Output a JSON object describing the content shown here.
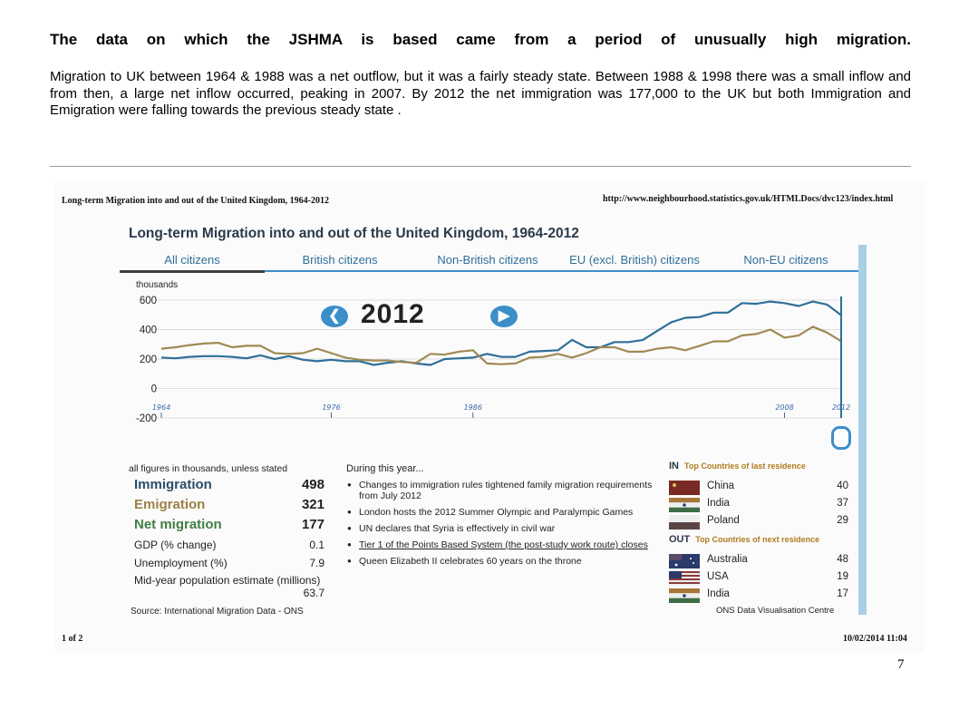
{
  "slide": {
    "heading": "The data on which the JSHMA is based came from a period of unusually high migration.",
    "intro": "Migration to UK between 1964 & 1988 was a net outflow, but it was a fairly steady state. Between 1988 & 1998 there was a small inflow and from then, a large net inflow occurred, peaking in 2007. By 2012 the net immigration was 177,000 to the UK but both Immigration and Emigration were falling towards the previous steady state .",
    "page_number": "7"
  },
  "printout": {
    "title": "Long-term Migration into and out of the United Kingdom, 1964-2012",
    "url": "http://www.neighbourhood.statistics.gov.uk/HTMLDocs/dvc123/index.html",
    "page": "1 of 2",
    "timestamp": "10/02/2014 11:04"
  },
  "visualisation": {
    "title": "Long-term Migration into and out of the United Kingdom, 1964-2012",
    "tabs": [
      "All citizens",
      "British citizens",
      "Non-British citizens",
      "EU (excl. British) citizens",
      "Non-EU citizens"
    ],
    "active_tab": "All citizens",
    "year": "2012",
    "prev_icon": "chevron-left-icon",
    "next_icon": "chevron-right-icon",
    "handwritten_years": [
      "1964",
      "1976",
      "1986",
      "2008",
      "2012"
    ],
    "stats_caption": "all figures in thousands, unless stated",
    "stats": {
      "immigration_label": "Immigration",
      "immigration": "498",
      "emigration_label": "Emigration",
      "emigration": "321",
      "net_label": "Net migration",
      "net": "177",
      "gdp_label": "GDP (% change)",
      "gdp": "0.1",
      "unemployment_label": "Unemployment (%)",
      "unemployment": "7.9",
      "population_label": "Mid-year population estimate (millions)",
      "population": "63.7"
    },
    "source": "Source: International Migration Data - ONS",
    "events_title": "During this year...",
    "events": [
      "Changes to immigration rules tightened family migration requirements from July 2012",
      "London hosts the 2012 Summer Olympic and Paralympic Games",
      "UN declares that Syria is effectively in civil war",
      "Tier 1 of the Points Based System (the post-study work route) closes",
      "Queen Elizabeth II celebrates 60 years on the throne"
    ],
    "in_label": "IN",
    "in_sub": "Top Countries of last residence",
    "in_countries": [
      {
        "name": "China",
        "value": "40"
      },
      {
        "name": "India",
        "value": "37"
      },
      {
        "name": "Poland",
        "value": "29"
      }
    ],
    "out_label": "OUT",
    "out_sub": "Top Countries of next residence",
    "out_countries": [
      {
        "name": "Australia",
        "value": "48"
      },
      {
        "name": "USA",
        "value": "19"
      },
      {
        "name": "India",
        "value": "17"
      }
    ],
    "credit": "ONS Data Visualisation Centre",
    "colors": {
      "immigration": "#2f6f99",
      "emigration": "#a08a55",
      "accent": "#3a8fc9"
    }
  },
  "chart_data": {
    "type": "line",
    "title": "Long-term Migration into and out of the United Kingdom, 1964-2012",
    "ylabel": "thousands",
    "xlabel": "",
    "ylim": [
      -200,
      600
    ],
    "yticks": [
      600,
      400,
      200,
      0,
      -200
    ],
    "x": [
      1964,
      1965,
      1966,
      1967,
      1968,
      1969,
      1970,
      1971,
      1972,
      1973,
      1974,
      1975,
      1976,
      1977,
      1978,
      1979,
      1980,
      1981,
      1982,
      1983,
      1984,
      1985,
      1986,
      1987,
      1988,
      1989,
      1990,
      1991,
      1992,
      1993,
      1994,
      1995,
      1996,
      1997,
      1998,
      1999,
      2000,
      2001,
      2002,
      2003,
      2004,
      2005,
      2006,
      2007,
      2008,
      2009,
      2010,
      2011,
      2012
    ],
    "series": [
      {
        "name": "Immigration",
        "values": [
          210,
          205,
          215,
          220,
          220,
          215,
          205,
          225,
          200,
          220,
          195,
          185,
          195,
          185,
          185,
          160,
          175,
          185,
          170,
          160,
          200,
          205,
          210,
          235,
          215,
          215,
          250,
          255,
          260,
          330,
          280,
          280,
          315,
          315,
          330,
          390,
          450,
          480,
          485,
          515,
          515,
          580,
          575,
          590,
          580,
          560,
          590,
          570,
          498
        ]
      },
      {
        "name": "Emigration",
        "values": [
          270,
          280,
          295,
          305,
          310,
          280,
          290,
          290,
          240,
          235,
          240,
          270,
          240,
          210,
          195,
          190,
          190,
          180,
          175,
          235,
          230,
          250,
          260,
          170,
          165,
          170,
          210,
          215,
          235,
          210,
          240,
          280,
          280,
          250,
          250,
          270,
          280,
          260,
          290,
          320,
          320,
          360,
          370,
          400,
          345,
          360,
          420,
          380,
          321
        ]
      }
    ],
    "grid": true,
    "legend": "none"
  }
}
